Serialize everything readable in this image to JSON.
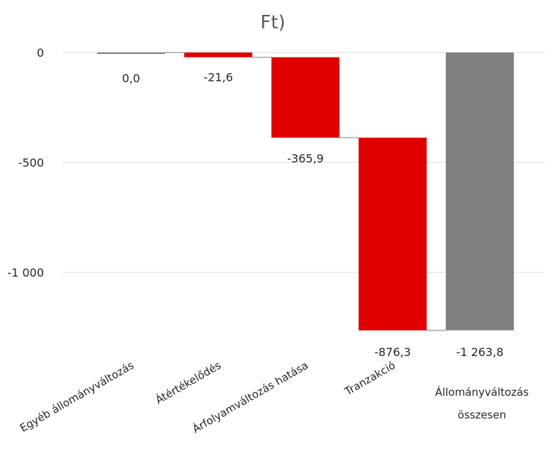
{
  "chart_data": {
    "type": "bar",
    "subtype": "waterfall",
    "title": "Ft)",
    "categories": [
      "Egyéb állományváltozás",
      "Átértékelődés",
      "Árfolyamváltozás hatása",
      "Tranzakció",
      "Állományváltozás összesen"
    ],
    "values": [
      0.0,
      -21.6,
      -365.9,
      -876.3,
      -1263.8
    ],
    "data_labels": [
      "0,0",
      "-21,6",
      "-365,9",
      "-876,3",
      "-1 263,8"
    ],
    "is_total": [
      false,
      false,
      false,
      false,
      true
    ],
    "y_ticks": [
      0,
      -500,
      -1000
    ],
    "y_tick_labels": [
      "0",
      "-500",
      "-1 000"
    ],
    "ylim": [
      -1300,
      0
    ],
    "grid": true,
    "legend": "none",
    "colors": {
      "decrease": "#e00000",
      "total": "#808080",
      "neutral": "#7f7f7f",
      "gridline": "#d9d9d9",
      "connector": "#a6a6a6"
    }
  }
}
